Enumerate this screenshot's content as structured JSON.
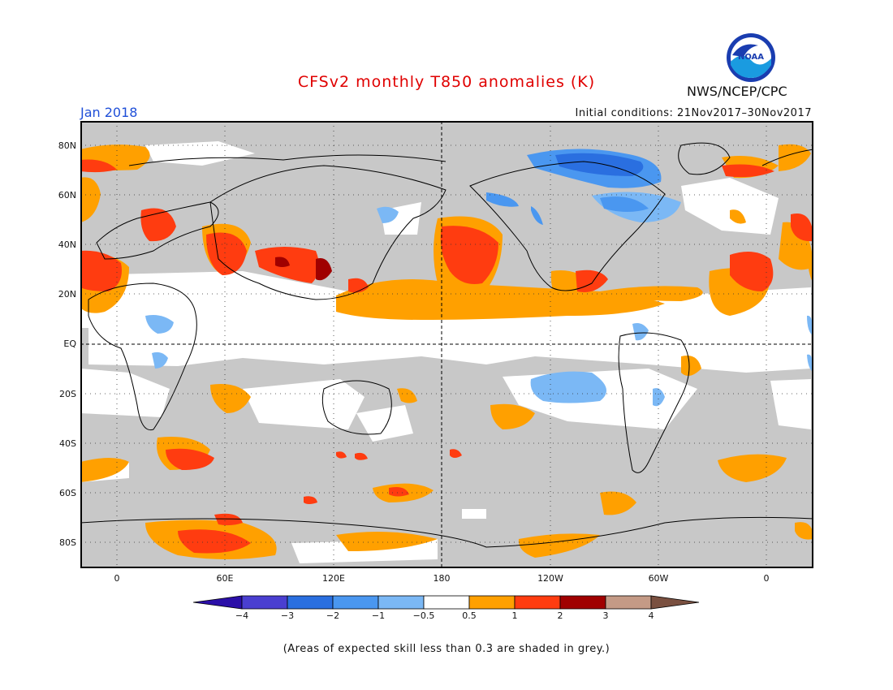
{
  "title": "CFSv2 monthly T850 anomalies (K)",
  "month": "Jan 2018",
  "initial_conditions": "Initial conditions: 21Nov2017–30Nov2017",
  "agency": "NWS/NCEP/CPC",
  "logo_text": "NOAA",
  "footnote": "(Areas of expected skill less than 0.3 are shaded in grey.)",
  "lat_labels": [
    "80N",
    "60N",
    "40N",
    "20N",
    "EQ",
    "20S",
    "40S",
    "60S",
    "80S"
  ],
  "lon_labels": [
    "0",
    "60E",
    "120E",
    "180",
    "120W",
    "60W",
    "0"
  ],
  "colorbar": {
    "labels": [
      "−4",
      "−3",
      "−2",
      "−1",
      "−0.5",
      "0.5",
      "1",
      "2",
      "3",
      "4"
    ],
    "colors": [
      "#2b0fa8",
      "#4a3fd0",
      "#2a6fe0",
      "#4a97f0",
      "#7bb8f5",
      "#ffffff",
      "#ffa000",
      "#ff3c10",
      "#a00000",
      "#c49a86",
      "#7a5040"
    ]
  },
  "colors": {
    "low_skill_grey": "#c8c8c8",
    "title_red": "#e00000",
    "month_blue": "#1f4fd8"
  }
}
